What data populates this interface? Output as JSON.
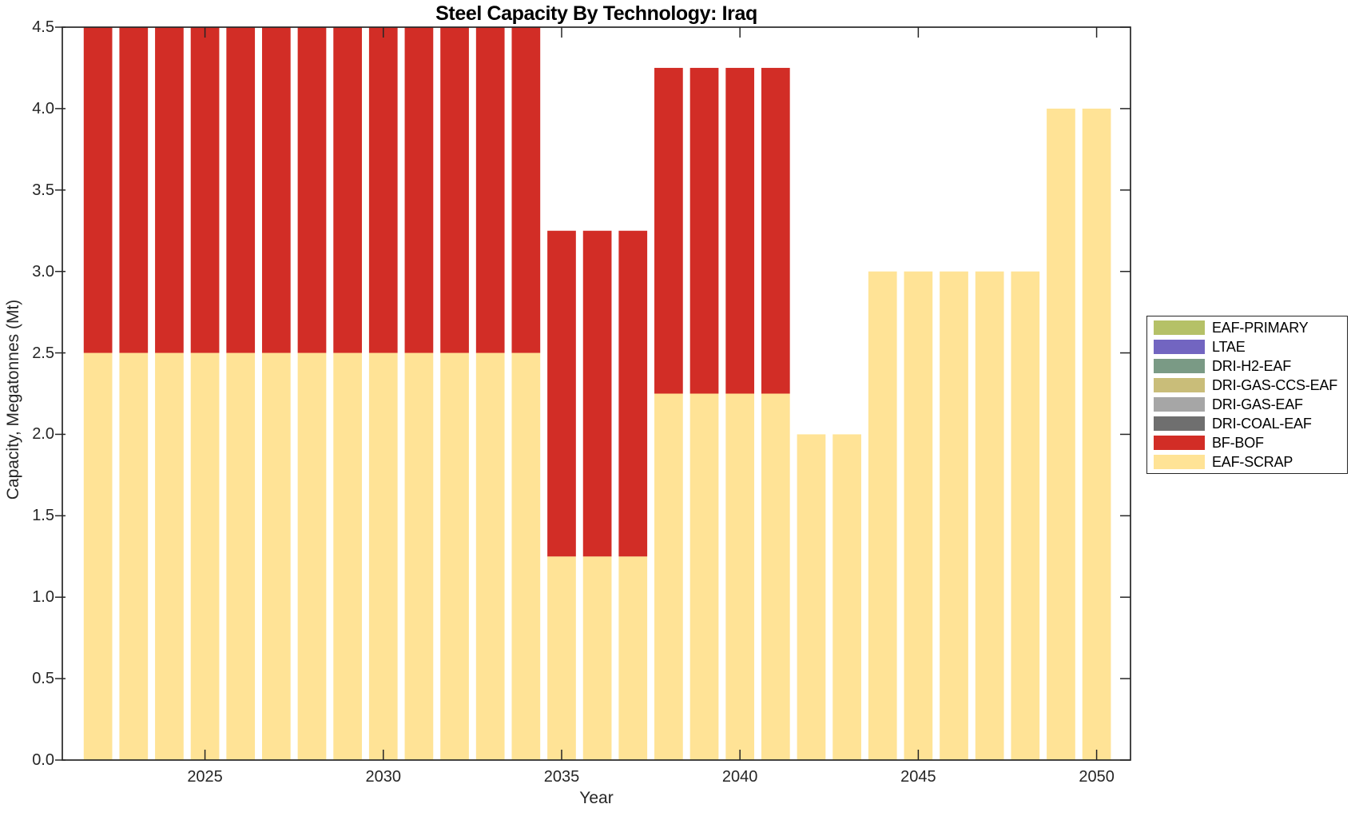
{
  "title": "Steel Capacity By Technology: Iraq",
  "axes": {
    "xlabel": "Year",
    "ylabel": "Capacity, Megatonnes (Mt)"
  },
  "colors": {
    "axis": "#262626",
    "bf_bof_red": "#D22D26",
    "eaf_scrap_yellow": "#FFE396"
  },
  "chart_data": {
    "type": "bar",
    "stacked": true,
    "title": "Steel Capacity By Technology: Iraq",
    "xlabel": "Year",
    "ylabel": "Capacity, Megatonnes (Mt)",
    "xlim": [
      2021.0,
      2050.95
    ],
    "ylim": [
      0,
      4.5
    ],
    "grid": false,
    "bar_width_fraction": 0.8,
    "xtick_labels": [
      "2025",
      "2030",
      "2035",
      "2040",
      "2045",
      "2050"
    ],
    "ytick_labels": [
      "0.0",
      "0.5",
      "1.0",
      "1.5",
      "2.0",
      "2.5",
      "3.0",
      "3.5",
      "4.0",
      "4.5"
    ],
    "categories": [
      2022,
      2023,
      2024,
      2025,
      2026,
      2027,
      2028,
      2029,
      2030,
      2031,
      2032,
      2033,
      2034,
      2035,
      2036,
      2037,
      2038,
      2039,
      2040,
      2041,
      2042,
      2043,
      2044,
      2045,
      2046,
      2047,
      2048,
      2049,
      2050
    ],
    "series": [
      {
        "name": "EAF-SCRAP",
        "color": "#FFE396",
        "values": [
          2.5,
          2.5,
          2.5,
          2.5,
          2.5,
          2.5,
          2.5,
          2.5,
          2.5,
          2.5,
          2.5,
          2.5,
          2.5,
          1.25,
          1.25,
          1.25,
          2.25,
          2.25,
          2.25,
          2.25,
          2.0,
          2.0,
          3.0,
          3.0,
          3.0,
          3.0,
          3.0,
          4.0,
          4.0
        ]
      },
      {
        "name": "BF-BOF",
        "color": "#D22D26",
        "values": [
          2.0,
          2.0,
          2.0,
          2.0,
          2.0,
          2.0,
          2.0,
          2.0,
          2.0,
          2.0,
          2.0,
          2.0,
          2.0,
          2.0,
          2.0,
          2.0,
          2.0,
          2.0,
          2.0,
          2.0,
          0,
          0,
          0,
          0,
          0,
          0,
          0,
          0,
          0
        ]
      }
    ],
    "legend_position": "right-outside",
    "legend": [
      {
        "label": "EAF-PRIMARY",
        "color": "#B5C167"
      },
      {
        "label": "LTAE",
        "color": "#7265C1"
      },
      {
        "label": "DRI-H2-EAF",
        "color": "#7A9A85"
      },
      {
        "label": "DRI-GAS-CCS-EAF",
        "color": "#C9BD79"
      },
      {
        "label": "DRI-GAS-EAF",
        "color": "#A6A6A6"
      },
      {
        "label": "DRI-COAL-EAF",
        "color": "#6F6F6F"
      },
      {
        "label": "BF-BOF",
        "color": "#D22D26"
      },
      {
        "label": "EAF-SCRAP",
        "color": "#FFE396"
      }
    ]
  }
}
